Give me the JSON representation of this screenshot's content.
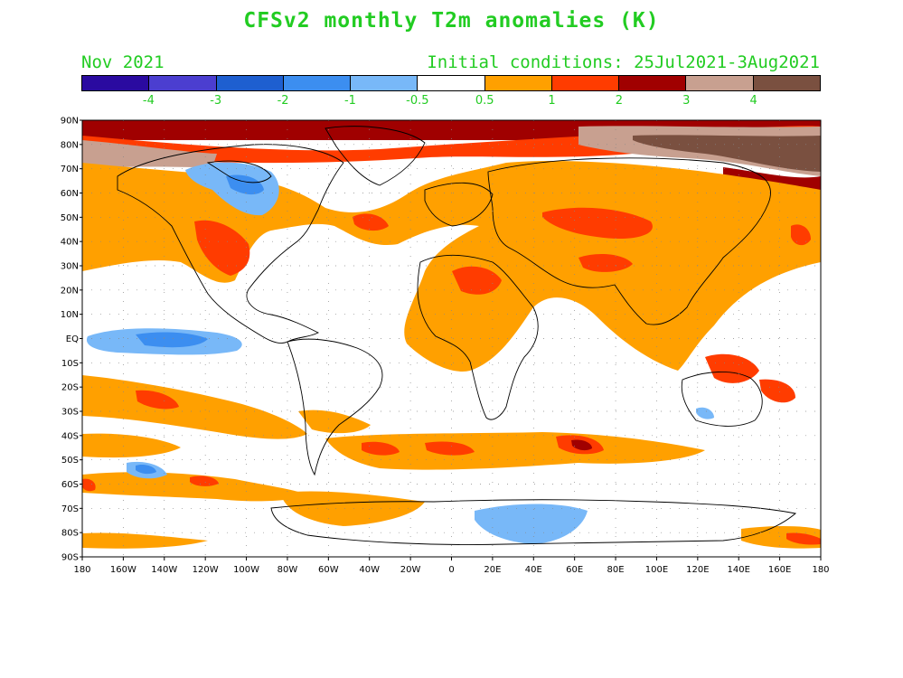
{
  "title": "CFSv2 monthly T2m anomalies (K)",
  "month": "Nov 2021",
  "initial_conditions": "Initial conditions: 25Jul2021-3Aug2021",
  "text_color": "#22cc22",
  "colorbar": {
    "colors": [
      "#2a0aa0",
      "#4b3ed0",
      "#1e5fd0",
      "#3c8ef0",
      "#78b8f8",
      "#ffffff",
      "#ffa000",
      "#ff3c00",
      "#a00000",
      "#c8a090",
      "#7a5040"
    ],
    "labels": [
      "-4",
      "-3",
      "-2",
      "-1",
      "-0.5",
      "0.5",
      "1",
      "2",
      "3",
      "4"
    ]
  },
  "axes": {
    "lat_labels": [
      "90N",
      "80N",
      "70N",
      "60N",
      "50N",
      "40N",
      "30N",
      "20N",
      "10N",
      "EQ",
      "10S",
      "20S",
      "30S",
      "40S",
      "50S",
      "60S",
      "70S",
      "80S",
      "90S"
    ],
    "lon_labels": [
      "180",
      "160W",
      "140W",
      "120W",
      "100W",
      "80W",
      "60W",
      "40W",
      "20W",
      "0",
      "20E",
      "40E",
      "60E",
      "80E",
      "100E",
      "120E",
      "140E",
      "160E",
      "180"
    ]
  }
}
